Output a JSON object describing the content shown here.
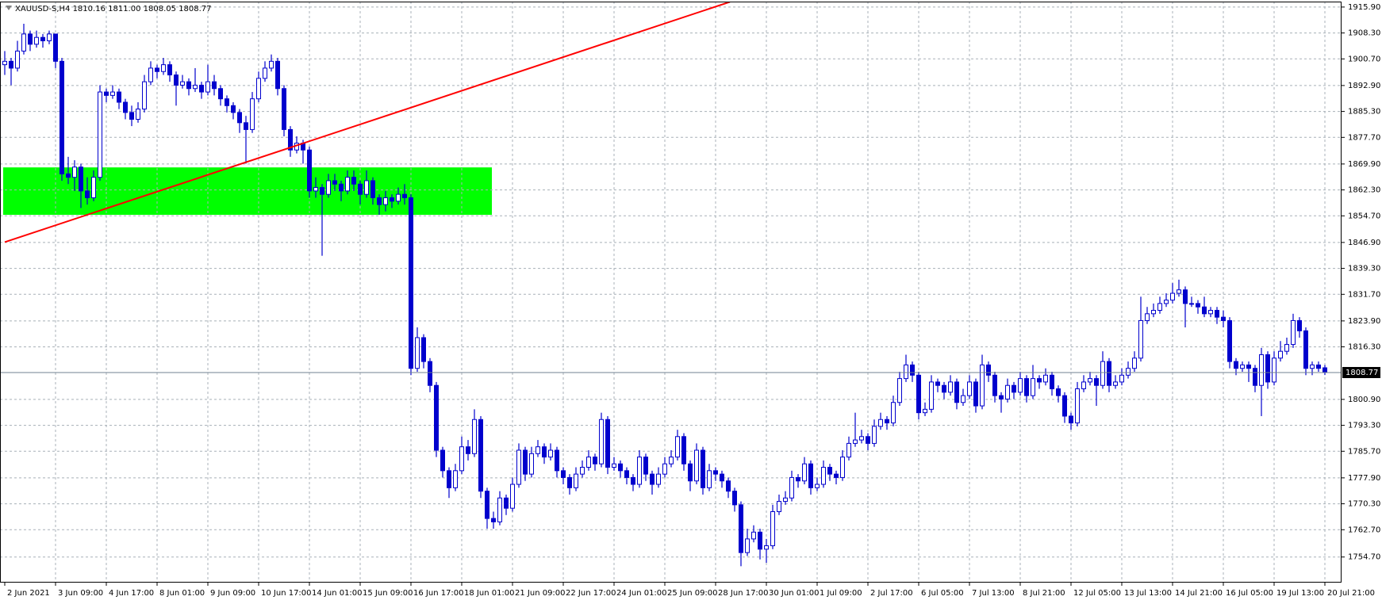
{
  "chart_data": {
    "type": "candlestick",
    "title": "XAUUSD-S,H4  1810.16 1811.00 1808.05 1808.77",
    "color": "#0000cd",
    "up_color": "#ffffff",
    "grid": true,
    "ylim": [
      1747.2,
      1917.5
    ],
    "yticks": [
      {
        "value": 1754.7,
        "label": "1754.70"
      },
      {
        "value": 1762.7,
        "label": "1762.70"
      },
      {
        "value": 1770.3,
        "label": "1770.30"
      },
      {
        "value": 1777.9,
        "label": "1777.90"
      },
      {
        "value": 1785.7,
        "label": "1785.70"
      },
      {
        "value": 1793.3,
        "label": "1793.30"
      },
      {
        "value": 1800.9,
        "label": "1800.90"
      },
      {
        "value": 1816.3,
        "label": "1816.30"
      },
      {
        "value": 1823.9,
        "label": "1823.90"
      },
      {
        "value": 1831.7,
        "label": "1831.70"
      },
      {
        "value": 1839.3,
        "label": "1839.30"
      },
      {
        "value": 1846.9,
        "label": "1846.90"
      },
      {
        "value": 1854.7,
        "label": "1854.70"
      },
      {
        "value": 1862.3,
        "label": "1862.30"
      },
      {
        "value": 1869.9,
        "label": "1869.90"
      },
      {
        "value": 1877.7,
        "label": "1877.70"
      },
      {
        "value": 1885.3,
        "label": "1885.30"
      },
      {
        "value": 1892.9,
        "label": "1892.90"
      },
      {
        "value": 1900.7,
        "label": "1900.70"
      },
      {
        "value": 1908.3,
        "label": "1908.30"
      },
      {
        "value": 1915.9,
        "label": "1915.90"
      }
    ],
    "current_price": 1808.77,
    "trendline": {
      "color": "#ff0000",
      "x": [
        0,
        114.25
      ],
      "y": [
        1847.0,
        1917.4
      ]
    },
    "zone": {
      "color": "#00ff00",
      "x": [
        0,
        76.75
      ],
      "y": [
        1855.0,
        1868.9
      ]
    },
    "categories": [
      "2 Jun 2021",
      null,
      null,
      null,
      null,
      null,
      null,
      null,
      "3 Jun 09:00",
      null,
      null,
      null,
      null,
      null,
      null,
      null,
      "4 Jun 17:00",
      null,
      null,
      null,
      null,
      null,
      null,
      null,
      "8 Jun 01:00",
      null,
      null,
      null,
      null,
      null,
      null,
      null,
      "9 Jun 09:00",
      null,
      null,
      null,
      null,
      null,
      null,
      null,
      "10 Jun 17:00",
      null,
      null,
      null,
      null,
      null,
      null,
      null,
      "14 Jun 01:00",
      null,
      null,
      null,
      null,
      null,
      null,
      null,
      "15 Jun 09:00",
      null,
      null,
      null,
      null,
      null,
      null,
      null,
      "16 Jun 17:00",
      null,
      null,
      null,
      null,
      null,
      null,
      null,
      "18 Jun 01:00",
      null,
      null,
      null,
      null,
      null,
      null,
      null,
      "21 Jun 09:00",
      null,
      null,
      null,
      null,
      null,
      null,
      null,
      "22 Jun 17:00",
      null,
      null,
      null,
      null,
      null,
      null,
      null,
      "24 Jun 01:00",
      null,
      null,
      null,
      null,
      null,
      null,
      null,
      "25 Jun 09:00",
      null,
      null,
      null,
      null,
      null,
      null,
      null,
      "28 Jun 17:00",
      null,
      null,
      null,
      null,
      null,
      null,
      null,
      "30 Jun 01:00",
      null,
      null,
      null,
      null,
      null,
      null,
      null,
      "1 Jul 09:00",
      null,
      null,
      null,
      null,
      null,
      null,
      null,
      "2 Jul 17:00",
      null,
      null,
      null,
      null,
      null,
      null,
      null,
      "6 Jul 05:00",
      null,
      null,
      null,
      null,
      null,
      null,
      null,
      "7 Jul 13:00",
      null,
      null,
      null,
      null,
      null,
      null,
      null,
      "8 Jul 21:00",
      null,
      null,
      null,
      null,
      null,
      null,
      null,
      "12 Jul 05:00",
      null,
      null,
      null,
      null,
      null,
      null,
      null,
      "13 Jul 13:00",
      null,
      null,
      null,
      null,
      null,
      null,
      null,
      "14 Jul 21:00",
      null,
      null,
      null,
      null,
      null,
      null,
      null,
      "16 Jul 05:00",
      null,
      null,
      null,
      null,
      null,
      null,
      null,
      "19 Jul 13:00",
      null,
      null,
      null,
      null,
      null,
      null,
      null,
      "20 Jul 21:00"
    ],
    "ohlc": [
      [
        1899,
        1903,
        1896,
        1900
      ],
      [
        1900,
        1901,
        1893,
        1898
      ],
      [
        1898,
        1906,
        1897,
        1903
      ],
      [
        1903,
        1911,
        1902,
        1908
      ],
      [
        1908,
        1909,
        1903,
        1905
      ],
      [
        1905,
        1909,
        1904,
        1907
      ],
      [
        1907,
        1908,
        1904,
        1906
      ],
      [
        1906,
        1909,
        1905,
        1908
      ],
      [
        1908,
        1908,
        1898,
        1900
      ],
      [
        1900,
        1901,
        1865,
        1867
      ],
      [
        1867,
        1872,
        1864,
        1866
      ],
      [
        1866,
        1871,
        1862,
        1869
      ],
      [
        1869,
        1870,
        1857,
        1862
      ],
      [
        1862,
        1866,
        1858,
        1860
      ],
      [
        1860,
        1868,
        1859,
        1866
      ],
      [
        1866,
        1893,
        1865,
        1891
      ],
      [
        1891,
        1892,
        1888,
        1890
      ],
      [
        1890,
        1893,
        1889,
        1891
      ],
      [
        1891,
        1892,
        1886,
        1888
      ],
      [
        1888,
        1889,
        1883,
        1885
      ],
      [
        1885,
        1887,
        1881,
        1883
      ],
      [
        1883,
        1888,
        1882,
        1886
      ],
      [
        1886,
        1896,
        1885,
        1894
      ],
      [
        1894,
        1900,
        1893,
        1898
      ],
      [
        1898,
        1899,
        1895,
        1897
      ],
      [
        1897,
        1901,
        1896,
        1899
      ],
      [
        1899,
        1900,
        1894,
        1896
      ],
      [
        1896,
        1897,
        1887,
        1893
      ],
      [
        1893,
        1896,
        1892,
        1894
      ],
      [
        1894,
        1895,
        1890,
        1892
      ],
      [
        1892,
        1898,
        1891,
        1893
      ],
      [
        1893,
        1894,
        1889,
        1891
      ],
      [
        1891,
        1899,
        1890,
        1894
      ],
      [
        1894,
        1896,
        1890,
        1892
      ],
      [
        1892,
        1893,
        1887,
        1889
      ],
      [
        1889,
        1890,
        1885,
        1887
      ],
      [
        1887,
        1888,
        1883,
        1885
      ],
      [
        1885,
        1886,
        1879,
        1882
      ],
      [
        1882,
        1884,
        1870,
        1880
      ],
      [
        1880,
        1891,
        1879,
        1889
      ],
      [
        1889,
        1897,
        1888,
        1895
      ],
      [
        1895,
        1900,
        1894,
        1898
      ],
      [
        1898,
        1902,
        1897,
        1900
      ],
      [
        1900,
        1901,
        1890,
        1892
      ],
      [
        1892,
        1893,
        1878,
        1880
      ],
      [
        1880,
        1881,
        1872,
        1874
      ],
      [
        1874,
        1878,
        1873,
        1876
      ],
      [
        1876,
        1877,
        1870,
        1874
      ],
      [
        1874,
        1875,
        1860,
        1862
      ],
      [
        1862,
        1866,
        1860,
        1863
      ],
      [
        1863,
        1864,
        1843,
        1861
      ],
      [
        1861,
        1867,
        1860,
        1865
      ],
      [
        1865,
        1867,
        1862,
        1864
      ],
      [
        1864,
        1865,
        1859,
        1862
      ],
      [
        1862,
        1868,
        1861,
        1866
      ],
      [
        1866,
        1868,
        1862,
        1864
      ],
      [
        1864,
        1865,
        1858,
        1861
      ],
      [
        1861,
        1868,
        1860,
        1865
      ],
      [
        1865,
        1866,
        1858,
        1860
      ],
      [
        1860,
        1861,
        1855,
        1858
      ],
      [
        1858,
        1862,
        1856,
        1860
      ],
      [
        1860,
        1861,
        1857,
        1859
      ],
      [
        1859,
        1863,
        1858,
        1861
      ],
      [
        1861,
        1864,
        1858,
        1860
      ],
      [
        1860,
        1861,
        1808,
        1810
      ],
      [
        1810,
        1822,
        1809,
        1819
      ],
      [
        1819,
        1820,
        1810,
        1812
      ],
      [
        1812,
        1813,
        1803,
        1805
      ],
      [
        1805,
        1806,
        1784,
        1786
      ],
      [
        1786,
        1787,
        1778,
        1780
      ],
      [
        1780,
        1781,
        1772,
        1775
      ],
      [
        1775,
        1782,
        1774,
        1780
      ],
      [
        1780,
        1790,
        1779,
        1787
      ],
      [
        1787,
        1789,
        1783,
        1785
      ],
      [
        1785,
        1798,
        1784,
        1795
      ],
      [
        1795,
        1796,
        1772,
        1774
      ],
      [
        1774,
        1775,
        1763,
        1766
      ],
      [
        1766,
        1768,
        1763,
        1765
      ],
      [
        1765,
        1774,
        1764,
        1772
      ],
      [
        1772,
        1773,
        1767,
        1769
      ],
      [
        1769,
        1778,
        1768,
        1776
      ],
      [
        1776,
        1788,
        1775,
        1786
      ],
      [
        1786,
        1787,
        1777,
        1779
      ],
      [
        1779,
        1787,
        1778,
        1785
      ],
      [
        1785,
        1789,
        1784,
        1787
      ],
      [
        1787,
        1788,
        1782,
        1784
      ],
      [
        1784,
        1788,
        1783,
        1786
      ],
      [
        1786,
        1787,
        1778,
        1780
      ],
      [
        1780,
        1781,
        1776,
        1778
      ],
      [
        1778,
        1779,
        1773,
        1775
      ],
      [
        1775,
        1781,
        1774,
        1779
      ],
      [
        1779,
        1783,
        1778,
        1781
      ],
      [
        1781,
        1786,
        1780,
        1784
      ],
      [
        1784,
        1785,
        1780,
        1782
      ],
      [
        1782,
        1797,
        1781,
        1795
      ],
      [
        1795,
        1796,
        1779,
        1781
      ],
      [
        1781,
        1784,
        1780,
        1782
      ],
      [
        1782,
        1783,
        1778,
        1780
      ],
      [
        1780,
        1781,
        1776,
        1778
      ],
      [
        1778,
        1779,
        1774,
        1776
      ],
      [
        1776,
        1786,
        1775,
        1784
      ],
      [
        1784,
        1785,
        1777,
        1779
      ],
      [
        1779,
        1780,
        1773,
        1776
      ],
      [
        1776,
        1781,
        1775,
        1779
      ],
      [
        1779,
        1784,
        1778,
        1782
      ],
      [
        1782,
        1786,
        1781,
        1784
      ],
      [
        1784,
        1792,
        1783,
        1790
      ],
      [
        1790,
        1791,
        1780,
        1782
      ],
      [
        1782,
        1783,
        1774,
        1777
      ],
      [
        1777,
        1788,
        1776,
        1786
      ],
      [
        1786,
        1787,
        1773,
        1775
      ],
      [
        1775,
        1782,
        1774,
        1780
      ],
      [
        1780,
        1781,
        1777,
        1779
      ],
      [
        1779,
        1780,
        1775,
        1777
      ],
      [
        1777,
        1778,
        1772,
        1774
      ],
      [
        1774,
        1775,
        1768,
        1770
      ],
      [
        1770,
        1771,
        1752,
        1756
      ],
      [
        1756,
        1763,
        1755,
        1760
      ],
      [
        1760,
        1764,
        1759,
        1762
      ],
      [
        1762,
        1763,
        1754,
        1757
      ],
      [
        1757,
        1760,
        1753,
        1758
      ],
      [
        1758,
        1770,
        1757,
        1768
      ],
      [
        1768,
        1773,
        1767,
        1771
      ],
      [
        1771,
        1774,
        1770,
        1772
      ],
      [
        1772,
        1780,
        1771,
        1778
      ],
      [
        1778,
        1779,
        1775,
        1777
      ],
      [
        1777,
        1784,
        1776,
        1782
      ],
      [
        1782,
        1783,
        1773,
        1775
      ],
      [
        1775,
        1778,
        1774,
        1776
      ],
      [
        1776,
        1783,
        1775,
        1781
      ],
      [
        1781,
        1782,
        1777,
        1779
      ],
      [
        1779,
        1780,
        1776,
        1778
      ],
      [
        1778,
        1786,
        1777,
        1784
      ],
      [
        1784,
        1790,
        1783,
        1788
      ],
      [
        1788,
        1797,
        1787,
        1789
      ],
      [
        1789,
        1792,
        1788,
        1790
      ],
      [
        1790,
        1791,
        1786,
        1788
      ],
      [
        1788,
        1795,
        1787,
        1793
      ],
      [
        1793,
        1797,
        1792,
        1795
      ],
      [
        1795,
        1796,
        1792,
        1794
      ],
      [
        1794,
        1802,
        1793,
        1800
      ],
      [
        1800,
        1809,
        1799,
        1807
      ],
      [
        1807,
        1814,
        1806,
        1811
      ],
      [
        1811,
        1812,
        1806,
        1808
      ],
      [
        1808,
        1809,
        1795,
        1797
      ],
      [
        1797,
        1800,
        1796,
        1798
      ],
      [
        1798,
        1808,
        1797,
        1806
      ],
      [
        1806,
        1807,
        1803,
        1805
      ],
      [
        1805,
        1806,
        1801,
        1803
      ],
      [
        1803,
        1808,
        1802,
        1806
      ],
      [
        1806,
        1807,
        1798,
        1800
      ],
      [
        1800,
        1804,
        1799,
        1802
      ],
      [
        1802,
        1808,
        1801,
        1806
      ],
      [
        1806,
        1807,
        1797,
        1799
      ],
      [
        1799,
        1814,
        1798,
        1811
      ],
      [
        1811,
        1812,
        1806,
        1808
      ],
      [
        1808,
        1809,
        1800,
        1802
      ],
      [
        1802,
        1803,
        1797,
        1801
      ],
      [
        1801,
        1807,
        1800,
        1805
      ],
      [
        1805,
        1806,
        1801,
        1803
      ],
      [
        1803,
        1809,
        1802,
        1807
      ],
      [
        1807,
        1808,
        1800,
        1802
      ],
      [
        1802,
        1811,
        1801,
        1807
      ],
      [
        1807,
        1808,
        1804,
        1806
      ],
      [
        1806,
        1810,
        1805,
        1808
      ],
      [
        1808,
        1809,
        1802,
        1804
      ],
      [
        1804,
        1805,
        1800,
        1802
      ],
      [
        1802,
        1803,
        1794,
        1796
      ],
      [
        1796,
        1797,
        1792,
        1794
      ],
      [
        1794,
        1806,
        1793,
        1804
      ],
      [
        1804,
        1808,
        1803,
        1806
      ],
      [
        1806,
        1809,
        1805,
        1807
      ],
      [
        1807,
        1808,
        1799,
        1805
      ],
      [
        1805,
        1815,
        1804,
        1812
      ],
      [
        1812,
        1813,
        1803,
        1805
      ],
      [
        1805,
        1808,
        1804,
        1806
      ],
      [
        1806,
        1810,
        1805,
        1808
      ],
      [
        1808,
        1812,
        1807,
        1810
      ],
      [
        1810,
        1815,
        1809,
        1813
      ],
      [
        1813,
        1831,
        1812,
        1824
      ],
      [
        1824,
        1828,
        1823,
        1826
      ],
      [
        1826,
        1829,
        1825,
        1827
      ],
      [
        1827,
        1831,
        1826,
        1829
      ],
      [
        1829,
        1832,
        1828,
        1830
      ],
      [
        1830,
        1835,
        1829,
        1832
      ],
      [
        1832,
        1836,
        1831,
        1833
      ],
      [
        1833,
        1834,
        1822,
        1829
      ],
      [
        1829,
        1831,
        1828,
        1829
      ],
      [
        1829,
        1830,
        1826,
        1828
      ],
      [
        1828,
        1831,
        1825,
        1826
      ],
      [
        1826,
        1828,
        1825,
        1827
      ],
      [
        1827,
        1828,
        1823,
        1825
      ],
      [
        1825,
        1827,
        1822,
        1824
      ],
      [
        1824,
        1825,
        1810,
        1812
      ],
      [
        1812,
        1813,
        1808,
        1810
      ],
      [
        1810,
        1812,
        1809,
        1811
      ],
      [
        1811,
        1812,
        1806,
        1810
      ],
      [
        1810,
        1811,
        1803,
        1805
      ],
      [
        1805,
        1816,
        1796,
        1814
      ],
      [
        1814,
        1815,
        1804,
        1806
      ],
      [
        1806,
        1815,
        1805,
        1813
      ],
      [
        1813,
        1818,
        1812,
        1815
      ],
      [
        1815,
        1819,
        1814,
        1817
      ],
      [
        1817,
        1826,
        1816,
        1824
      ],
      [
        1824,
        1825,
        1819,
        1821
      ],
      [
        1821,
        1822,
        1808,
        1810
      ],
      [
        1810,
        1812,
        1808,
        1811
      ],
      [
        1811,
        1812,
        1809,
        1810
      ],
      [
        1810.16,
        1811,
        1808.05,
        1808.77
      ]
    ]
  }
}
